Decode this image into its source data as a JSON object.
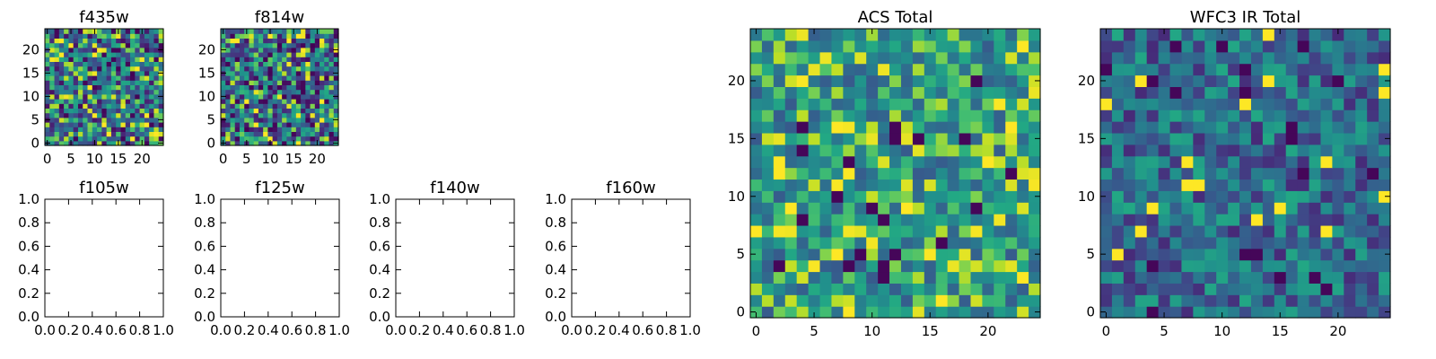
{
  "chart_data": [
    {
      "type": "heatmap",
      "title": "f435w",
      "xticks": [
        "0",
        "5",
        "10",
        "15",
        "20"
      ],
      "yticks": [
        "0",
        "5",
        "10",
        "15",
        "20"
      ],
      "xlim": [
        -0.5,
        24.5
      ],
      "ylim": [
        -0.5,
        24.5
      ],
      "grid_size": [
        25,
        25
      ],
      "colormap": "viridis",
      "seed": 435
    },
    {
      "type": "heatmap",
      "title": "f814w",
      "xticks": [
        "0",
        "5",
        "10",
        "15",
        "20"
      ],
      "yticks": [
        "0",
        "5",
        "10",
        "15",
        "20"
      ],
      "xlim": [
        -0.5,
        24.5
      ],
      "ylim": [
        -0.5,
        24.5
      ],
      "grid_size": [
        25,
        25
      ],
      "colormap": "viridis",
      "seed": 814
    },
    {
      "type": "empty",
      "title": "f105w",
      "xticks": [
        "0.0",
        "0.2",
        "0.4",
        "0.6",
        "0.8",
        "1.0"
      ],
      "yticks": [
        "0.0",
        "0.2",
        "0.4",
        "0.6",
        "0.8",
        "1.0"
      ],
      "xlim": [
        0,
        1
      ],
      "ylim": [
        0,
        1
      ]
    },
    {
      "type": "empty",
      "title": "f125w",
      "xticks": [
        "0.0",
        "0.2",
        "0.4",
        "0.6",
        "0.8",
        "1.0"
      ],
      "yticks": [
        "0.0",
        "0.2",
        "0.4",
        "0.6",
        "0.8",
        "1.0"
      ],
      "xlim": [
        0,
        1
      ],
      "ylim": [
        0,
        1
      ]
    },
    {
      "type": "empty",
      "title": "f140w",
      "xticks": [
        "0.0",
        "0.2",
        "0.4",
        "0.6",
        "0.8",
        "1.0"
      ],
      "yticks": [
        "0.0",
        "0.2",
        "0.4",
        "0.6",
        "0.8",
        "1.0"
      ],
      "xlim": [
        0,
        1
      ],
      "ylim": [
        0,
        1
      ]
    },
    {
      "type": "empty",
      "title": "f160w",
      "xticks": [
        "0.0",
        "0.2",
        "0.4",
        "0.6",
        "0.8",
        "1.0"
      ],
      "yticks": [
        "0.0",
        "0.2",
        "0.4",
        "0.6",
        "0.8",
        "1.0"
      ],
      "xlim": [
        0,
        1
      ],
      "ylim": [
        0,
        1
      ]
    },
    {
      "type": "heatmap",
      "title": "ACS Total",
      "xticks": [
        "0",
        "5",
        "10",
        "15",
        "20"
      ],
      "yticks": [
        "0",
        "5",
        "10",
        "15",
        "20"
      ],
      "xlim": [
        -0.5,
        24.5
      ],
      "ylim": [
        -0.5,
        24.5
      ],
      "grid_size": [
        25,
        25
      ],
      "colormap": "viridis",
      "value_range": [
        0.35,
        1.0
      ],
      "seed": 1249
    },
    {
      "type": "heatmap",
      "title": "WFC3 IR Total",
      "xticks": [
        "0",
        "5",
        "10",
        "15",
        "20"
      ],
      "yticks": [
        "0",
        "5",
        "10",
        "15",
        "20"
      ],
      "xlim": [
        -0.5,
        24.5
      ],
      "ylim": [
        -0.5,
        24.5
      ],
      "grid_size": [
        25,
        25
      ],
      "colormap": "viridis",
      "value_range": [
        0.15,
        0.75
      ],
      "seed": 530
    }
  ]
}
